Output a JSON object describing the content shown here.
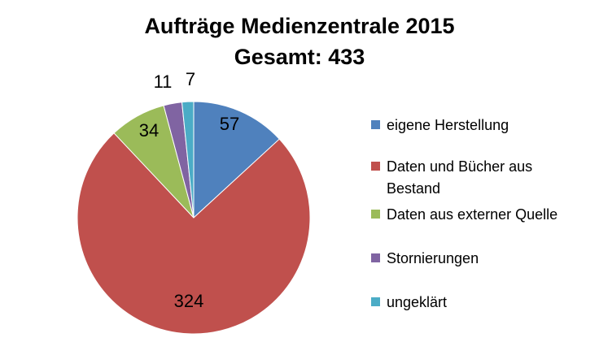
{
  "chart_data": {
    "type": "pie",
    "title": "Aufträge Medienzentrale 2015",
    "subtitle": "Gesamt: 433",
    "legend_position": "right",
    "slices": [
      {
        "label": "eigene Herstellung",
        "value": 57,
        "color": "#4F81BD"
      },
      {
        "label": "Daten und Bücher aus Bestand",
        "value": 324,
        "color": "#C0504D"
      },
      {
        "label": "Daten aus externer Quelle",
        "value": 34,
        "color": "#9BBB59"
      },
      {
        "label": "Stornierungen",
        "value": 11,
        "color": "#8064A2"
      },
      {
        "label": "ungeklärt",
        "value": 7,
        "color": "#4BACC6"
      }
    ]
  }
}
